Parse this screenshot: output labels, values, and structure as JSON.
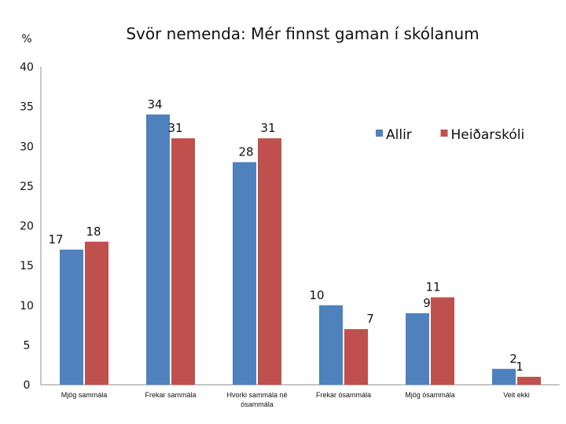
{
  "chart_data": {
    "type": "bar",
    "title": "Svör nemenda: Mér finnst gaman í skólanum",
    "ylabel": "%",
    "xlabel": "",
    "ylim": [
      0,
      40
    ],
    "yticks": [
      0,
      5,
      10,
      15,
      20,
      25,
      30,
      35,
      40
    ],
    "grid": false,
    "legend_position": "top-right",
    "categories": [
      "Mjög sammála",
      "Frekar sammála",
      "Hvorki sammála né ósammála",
      "Frekar ósammála",
      "Mjög ósammála",
      "Veit ekki"
    ],
    "series": [
      {
        "name": "Allir",
        "color": "#4f81bd",
        "values": [
          17,
          34,
          28,
          10,
          9,
          2
        ],
        "labels": [
          "17",
          "34",
          "28",
          "10",
          "9",
          "2"
        ]
      },
      {
        "name": "Heiðarskóli",
        "color": "#c0504d",
        "values": [
          18,
          31,
          31,
          7,
          11,
          1
        ],
        "labels": [
          "18",
          "31",
          "31",
          "7",
          "11",
          "1"
        ]
      }
    ]
  }
}
